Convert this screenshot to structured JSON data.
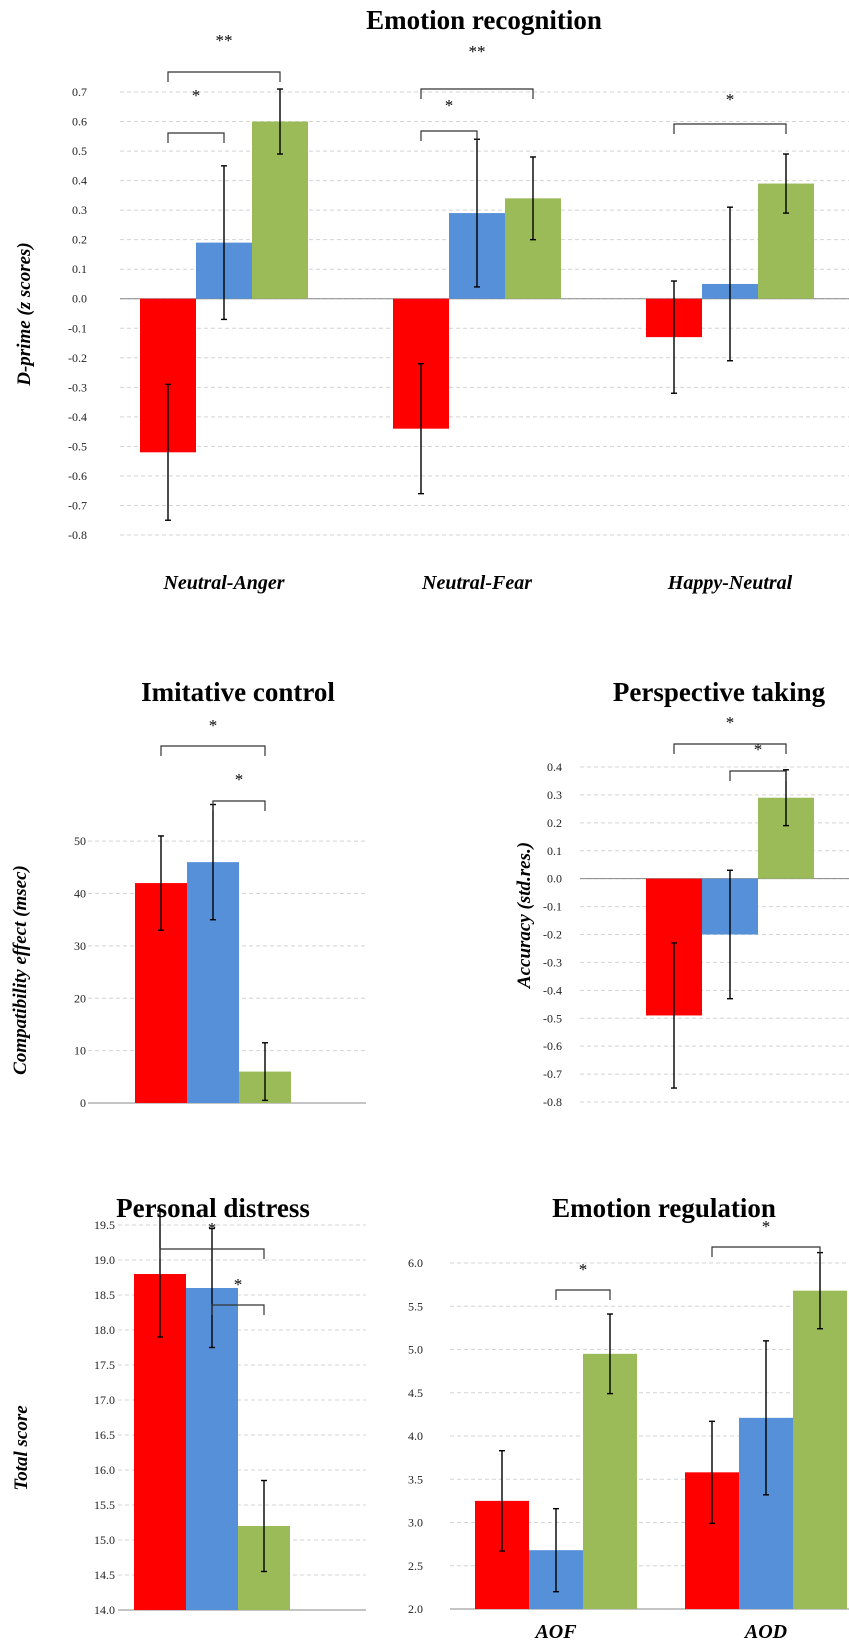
{
  "colors": [
    "#ff0000",
    "#5590d8",
    "#9bbb59"
  ],
  "chart_data": [
    {
      "type": "bar",
      "title": "Emotion recognition",
      "ylabel": "D-prime (z scores)",
      "xlabel": "",
      "categories": [
        "Neutral-Anger",
        "Neutral-Fear",
        "Happy-Neutral"
      ],
      "ylim": [
        -0.8,
        0.7
      ],
      "yticks": [
        -0.8,
        -0.7,
        -0.6,
        -0.5,
        -0.4,
        -0.3,
        -0.2,
        -0.1,
        0.0,
        0.1,
        0.2,
        0.3,
        0.4,
        0.5,
        0.6,
        0.7
      ],
      "tick_decimals": 1,
      "grid": true,
      "series": [
        {
          "values": [
            -0.52,
            -0.44,
            -0.13
          ],
          "errors": [
            0.23,
            0.22,
            0.19
          ]
        },
        {
          "values": [
            0.19,
            0.29,
            0.05
          ],
          "errors": [
            0.26,
            0.25,
            0.26
          ]
        },
        {
          "values": [
            0.6,
            0.34,
            0.39
          ],
          "errors": [
            0.11,
            0.14,
            0.1
          ]
        }
      ],
      "significance": [
        {
          "label": "*",
          "category": 0,
          "from": 0,
          "to": 1
        },
        {
          "label": "**",
          "category": 0,
          "from": 0,
          "to": 2
        },
        {
          "label": "*",
          "category": 1,
          "from": 0,
          "to": 1
        },
        {
          "label": "**",
          "category": 1,
          "from": 0,
          "to": 2
        },
        {
          "label": "*",
          "category": 2,
          "from": 0,
          "to": 2
        }
      ]
    },
    {
      "type": "bar",
      "title": "Imitative control",
      "ylabel": "Compatibility effect (msec)",
      "xlabel": "",
      "categories": [
        ""
      ],
      "ylim": [
        0,
        55
      ],
      "yticks": [
        0,
        10,
        20,
        30,
        40,
        50
      ],
      "tick_decimals": 0,
      "grid": true,
      "series": [
        {
          "values": [
            42
          ],
          "errors": [
            9
          ]
        },
        {
          "values": [
            46
          ],
          "errors": [
            11
          ]
        },
        {
          "values": [
            6
          ],
          "errors": [
            5.5
          ]
        }
      ],
      "significance": [
        {
          "label": "*",
          "category": 0,
          "from": 0,
          "to": 2
        },
        {
          "label": "*",
          "category": 0,
          "from": 1,
          "to": 2
        }
      ]
    },
    {
      "type": "bar",
      "title": "Perspective taking",
      "ylabel": "Accuracy (std.res.)",
      "xlabel": "",
      "categories": [
        ""
      ],
      "ylim": [
        -0.8,
        0.4
      ],
      "yticks": [
        -0.8,
        -0.7,
        -0.6,
        -0.5,
        -0.4,
        -0.3,
        -0.2,
        -0.1,
        0.0,
        0.1,
        0.2,
        0.3,
        0.4
      ],
      "tick_decimals": 1,
      "grid": true,
      "series": [
        {
          "values": [
            -0.49
          ],
          "errors": [
            0.26
          ]
        },
        {
          "values": [
            -0.2
          ],
          "errors": [
            0.23
          ]
        },
        {
          "values": [
            0.29
          ],
          "errors": [
            0.1
          ]
        }
      ],
      "significance": [
        {
          "label": "*",
          "category": 0,
          "from": 0,
          "to": 2
        },
        {
          "label": "*",
          "category": 0,
          "from": 1,
          "to": 2
        }
      ]
    },
    {
      "type": "bar",
      "title": "Personal distress",
      "ylabel": "Total score",
      "xlabel": "",
      "categories": [
        ""
      ],
      "ylim": [
        14.0,
        19.5
      ],
      "yticks": [
        14.0,
        14.5,
        15.0,
        15.5,
        16.0,
        16.5,
        17.0,
        17.5,
        18.0,
        18.5,
        19.0,
        19.5
      ],
      "tick_decimals": 1,
      "grid": true,
      "series": [
        {
          "values": [
            18.8
          ],
          "errors": [
            0.9
          ]
        },
        {
          "values": [
            18.6
          ],
          "errors": [
            0.85
          ]
        },
        {
          "values": [
            15.2
          ],
          "errors": [
            0.65
          ]
        }
      ],
      "significance": [
        {
          "label": "*",
          "category": 0,
          "from": 0,
          "to": 2
        },
        {
          "label": "*",
          "category": 0,
          "from": 1,
          "to": 2
        }
      ]
    },
    {
      "type": "bar",
      "title": "Emotion regulation",
      "ylabel": "",
      "xlabel": "",
      "categories": [
        "AOF",
        "AOD"
      ],
      "ylim": [
        2.0,
        6.0
      ],
      "yticks": [
        2.0,
        2.5,
        3.0,
        3.5,
        4.0,
        4.5,
        5.0,
        5.5,
        6.0
      ],
      "tick_decimals": 1,
      "grid": true,
      "series": [
        {
          "values": [
            3.25,
            3.58
          ],
          "errors": [
            0.58,
            0.59
          ]
        },
        {
          "values": [
            2.68,
            4.21
          ],
          "errors": [
            0.48,
            0.89
          ]
        },
        {
          "values": [
            4.95,
            5.68
          ],
          "errors": [
            0.46,
            0.44
          ]
        }
      ],
      "significance": [
        {
          "label": "*",
          "category": 0,
          "from": 1,
          "to": 2
        },
        {
          "label": "*",
          "category": 1,
          "from": 0,
          "to": 2
        }
      ]
    }
  ]
}
